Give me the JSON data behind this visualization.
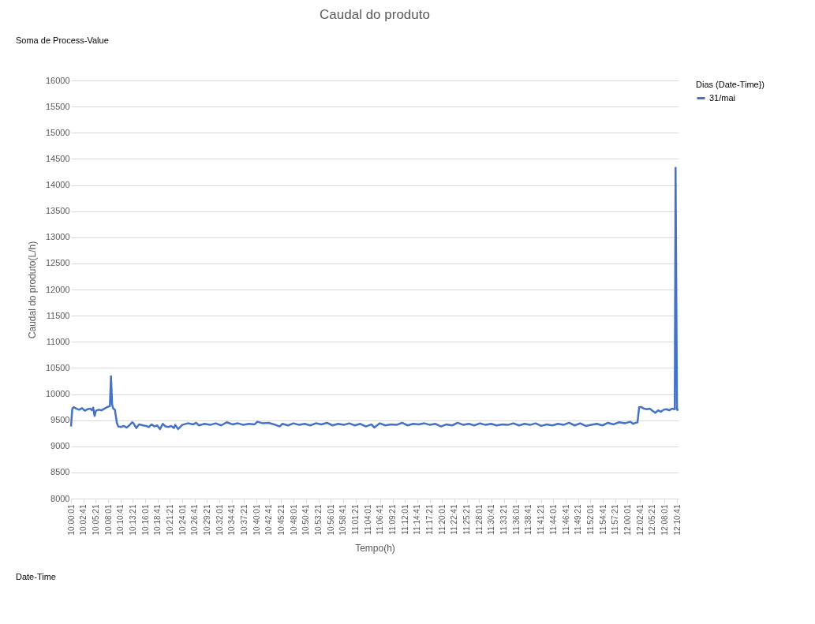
{
  "chart_data": {
    "type": "line",
    "title": "Caudal do produto",
    "xlabel": "Tempo(h)",
    "ylabel": "Caudal do produto(L/h)",
    "legend_title": "Dias (Date-Time})",
    "annotations": [
      "Soma de Process-Value",
      "Date-Time"
    ],
    "legend": "right",
    "grid": "y",
    "line_style": "solid",
    "xlim": [
      10.0003,
      12.1834
    ],
    "ylim": [
      8000,
      16000
    ],
    "yticks": [
      8000,
      8500,
      9000,
      9500,
      10000,
      10500,
      11000,
      11500,
      12000,
      12500,
      13000,
      13500,
      14000,
      14500,
      15000,
      15500,
      16000
    ],
    "xticks": [
      {
        "value": 10.0003,
        "label": "10:00:01"
      },
      {
        "value": 10.0447,
        "label": "10:02:41"
      },
      {
        "value": 10.0892,
        "label": "10:05:21"
      },
      {
        "value": 10.1336,
        "label": "10:08:01"
      },
      {
        "value": 10.1781,
        "label": "10:10:41"
      },
      {
        "value": 10.2225,
        "label": "10:13:21"
      },
      {
        "value": 10.2669,
        "label": "10:16:01"
      },
      {
        "value": 10.3114,
        "label": "10:18:41"
      },
      {
        "value": 10.3558,
        "label": "10:21:21"
      },
      {
        "value": 10.4003,
        "label": "10:24:01"
      },
      {
        "value": 10.4447,
        "label": "10:26:41"
      },
      {
        "value": 10.4892,
        "label": "10:29:21"
      },
      {
        "value": 10.5336,
        "label": "10:32:01"
      },
      {
        "value": 10.5781,
        "label": "10:34:41"
      },
      {
        "value": 10.6225,
        "label": "10:37:21"
      },
      {
        "value": 10.6669,
        "label": "10:40:01"
      },
      {
        "value": 10.7114,
        "label": "10:42:41"
      },
      {
        "value": 10.7558,
        "label": "10:45:21"
      },
      {
        "value": 10.8003,
        "label": "10:48:01"
      },
      {
        "value": 10.8447,
        "label": "10:50:41"
      },
      {
        "value": 10.8892,
        "label": "10:53:21"
      },
      {
        "value": 10.9336,
        "label": "10:56:01"
      },
      {
        "value": 10.9781,
        "label": "10:58:41"
      },
      {
        "value": 11.0225,
        "label": "11:01:21"
      },
      {
        "value": 11.0669,
        "label": "11:04:01"
      },
      {
        "value": 11.1114,
        "label": "11:06:41"
      },
      {
        "value": 11.1558,
        "label": "11:09:21"
      },
      {
        "value": 11.2003,
        "label": "11:12:01"
      },
      {
        "value": 11.2447,
        "label": "11:14:41"
      },
      {
        "value": 11.2892,
        "label": "11:17:21"
      },
      {
        "value": 11.3336,
        "label": "11:20:01"
      },
      {
        "value": 11.3781,
        "label": "11:22:41"
      },
      {
        "value": 11.4225,
        "label": "11:25:21"
      },
      {
        "value": 11.4669,
        "label": "11:28:01"
      },
      {
        "value": 11.5114,
        "label": "11:30:41"
      },
      {
        "value": 11.5558,
        "label": "11:33:21"
      },
      {
        "value": 11.6003,
        "label": "11:36:01"
      },
      {
        "value": 11.6447,
        "label": "11:38:41"
      },
      {
        "value": 11.6892,
        "label": "11:41:21"
      },
      {
        "value": 11.7336,
        "label": "11:44:01"
      },
      {
        "value": 11.7781,
        "label": "11:46:41"
      },
      {
        "value": 11.8225,
        "label": "11:49:21"
      },
      {
        "value": 11.8669,
        "label": "11:52:01"
      },
      {
        "value": 11.9114,
        "label": "11:54:41"
      },
      {
        "value": 11.9558,
        "label": "11:57:21"
      },
      {
        "value": 12.0003,
        "label": "12:00:01"
      },
      {
        "value": 12.0447,
        "label": "12:02:41"
      },
      {
        "value": 12.0892,
        "label": "12:05:21"
      },
      {
        "value": 12.1336,
        "label": "12:08:01"
      },
      {
        "value": 12.1781,
        "label": "12:10:41"
      }
    ],
    "series": [
      {
        "name": "31/mai",
        "color": "#4472c4",
        "x": [
          10.0003,
          10.005,
          10.01,
          10.02,
          10.03,
          10.04,
          10.05,
          10.06,
          10.07,
          10.075,
          10.08,
          10.085,
          10.09,
          10.1,
          10.11,
          10.12,
          10.13,
          10.14,
          10.144,
          10.148,
          10.152,
          10.158,
          10.165,
          10.17,
          10.18,
          10.19,
          10.2,
          10.21,
          10.22,
          10.225,
          10.235,
          10.245,
          10.26,
          10.27,
          10.28,
          10.29,
          10.3,
          10.31,
          10.32,
          10.33,
          10.34,
          10.35,
          10.36,
          10.37,
          10.375,
          10.385,
          10.4,
          10.42,
          10.44,
          10.45,
          10.46,
          10.48,
          10.5,
          10.52,
          10.54,
          10.56,
          10.58,
          10.6,
          10.62,
          10.64,
          10.66,
          10.67,
          10.69,
          10.71,
          10.73,
          10.75,
          10.76,
          10.78,
          10.8,
          10.82,
          10.84,
          10.86,
          10.88,
          10.9,
          10.92,
          10.94,
          10.96,
          10.98,
          11.0,
          11.02,
          11.04,
          11.06,
          11.08,
          11.09,
          11.11,
          11.13,
          11.15,
          11.17,
          11.19,
          11.21,
          11.23,
          11.25,
          11.27,
          11.29,
          11.31,
          11.33,
          11.35,
          11.37,
          11.39,
          11.41,
          11.43,
          11.45,
          11.47,
          11.49,
          11.51,
          11.53,
          11.55,
          11.57,
          11.59,
          11.61,
          11.63,
          11.65,
          11.67,
          11.69,
          11.71,
          11.73,
          11.75,
          11.77,
          11.79,
          11.81,
          11.83,
          11.85,
          11.87,
          11.89,
          11.91,
          11.93,
          11.95,
          11.97,
          11.99,
          12.01,
          12.02,
          12.03,
          12.036,
          12.042,
          12.05,
          12.06,
          12.07,
          12.08,
          12.09,
          12.1,
          12.11,
          12.12,
          12.13,
          12.14,
          12.15,
          12.16,
          12.17,
          12.1728,
          12.178,
          12.1834
        ],
        "values": [
          9380,
          9720,
          9750,
          9720,
          9700,
          9730,
          9680,
          9710,
          9720,
          9690,
          9740,
          9580,
          9680,
          9700,
          9690,
          9720,
          9750,
          9770,
          10340,
          9800,
          9720,
          9700,
          9450,
          9380,
          9370,
          9390,
          9360,
          9400,
          9460,
          9440,
          9350,
          9420,
          9400,
          9390,
          9370,
          9420,
          9380,
          9400,
          9330,
          9430,
          9380,
          9370,
          9390,
          9350,
          9410,
          9330,
          9410,
          9440,
          9420,
          9450,
          9400,
          9430,
          9410,
          9440,
          9400,
          9460,
          9420,
          9440,
          9410,
          9430,
          9420,
          9470,
          9440,
          9450,
          9420,
          9380,
          9430,
          9400,
          9440,
          9410,
          9430,
          9400,
          9440,
          9420,
          9450,
          9400,
          9430,
          9410,
          9440,
          9400,
          9430,
          9380,
          9420,
          9360,
          9440,
          9400,
          9420,
          9410,
          9450,
          9400,
          9430,
          9420,
          9440,
          9410,
          9430,
          9380,
          9420,
          9400,
          9450,
          9410,
          9430,
          9400,
          9440,
          9410,
          9430,
          9400,
          9420,
          9410,
          9440,
          9400,
          9430,
          9410,
          9440,
          9390,
          9420,
          9400,
          9430,
          9410,
          9450,
          9400,
          9440,
          9390,
          9410,
          9430,
          9400,
          9450,
          9420,
          9460,
          9440,
          9470,
          9430,
          9450,
          9460,
          9750,
          9750,
          9720,
          9710,
          9720,
          9680,
          9640,
          9690,
          9660,
          9700,
          9710,
          9690,
          9720,
          9710,
          14330,
          9700,
          9700
        ]
      }
    ]
  }
}
